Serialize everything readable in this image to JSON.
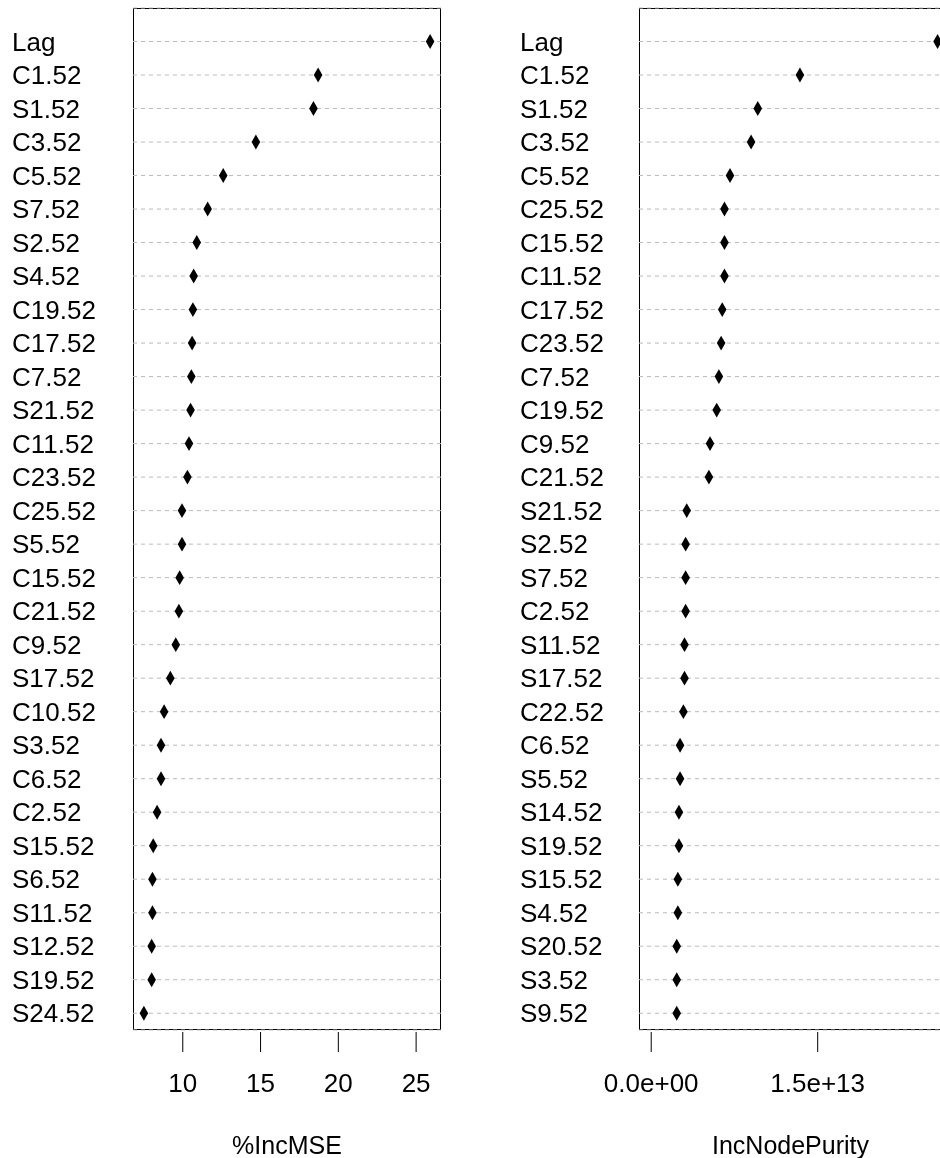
{
  "chart_data": [
    {
      "type": "scatter",
      "orientation": "horizontal",
      "xlabel": "%IncMSE",
      "color": "#000000",
      "marker": "diamond",
      "grid": "y",
      "categories": [
        "Lag",
        "C1.52",
        "S1.52",
        "C3.52",
        "C5.52",
        "S7.52",
        "S2.52",
        "S4.52",
        "C19.52",
        "C17.52",
        "C7.52",
        "S21.52",
        "C11.52",
        "C23.52",
        "C25.52",
        "S5.52",
        "C15.52",
        "C21.52",
        "C9.52",
        "S17.52",
        "C10.52",
        "S3.52",
        "C6.52",
        "C2.52",
        "S15.52",
        "S6.52",
        "S11.52",
        "S12.52",
        "S19.52",
        "S24.52"
      ],
      "values": [
        25.9,
        18.7,
        18.4,
        14.7,
        12.6,
        11.6,
        10.9,
        10.7,
        10.65,
        10.6,
        10.55,
        10.5,
        10.4,
        10.3,
        9.95,
        9.95,
        9.8,
        9.75,
        9.55,
        9.2,
        8.8,
        8.6,
        8.6,
        8.35,
        8.1,
        8.05,
        8.05,
        8.0,
        8.0,
        7.5
      ],
      "xlim": [
        6.8,
        26.6
      ],
      "xticks": [
        10,
        15,
        20,
        25
      ]
    },
    {
      "type": "scatter",
      "orientation": "horizontal",
      "xlabel": "IncNodePurity",
      "color": "#000000",
      "marker": "diamond",
      "grid": "y",
      "categories": [
        "Lag",
        "C1.52",
        "S1.52",
        "C3.52",
        "C5.52",
        "C25.52",
        "C15.52",
        "C11.52",
        "C17.52",
        "C23.52",
        "C7.52",
        "C19.52",
        "C9.52",
        "C21.52",
        "S21.52",
        "S2.52",
        "S7.52",
        "C2.52",
        "S11.52",
        "S17.52",
        "C22.52",
        "C6.52",
        "S5.52",
        "S14.52",
        "S19.52",
        "S15.52",
        "S4.52",
        "S20.52",
        "S3.52",
        "S9.52"
      ],
      "values": [
        25800000000000.0,
        13400000000000.0,
        9600000000000.0,
        9000000000000.0,
        7100000000000.0,
        6600000000000.0,
        6600000000000.0,
        6600000000000.0,
        6400000000000.0,
        6300000000000.0,
        6100000000000.0,
        5900000000000.0,
        5300000000000.0,
        5200000000000.0,
        3200000000000.0,
        3100000000000.0,
        3100000000000.0,
        3100000000000.0,
        3000000000000.0,
        3000000000000.0,
        2900000000000.0,
        2600000000000.0,
        2600000000000.0,
        2500000000000.0,
        2500000000000.0,
        2400000000000.0,
        2400000000000.0,
        2300000000000.0,
        2300000000000.0,
        2300000000000.0
      ],
      "xlim": [
        -1100000000000.0,
        26200000000000.0
      ],
      "xticks": [
        {
          "value": 0,
          "label": "0.0e+00"
        },
        {
          "value": 15000000000000.0,
          "label": "1.5e+13"
        }
      ]
    }
  ]
}
